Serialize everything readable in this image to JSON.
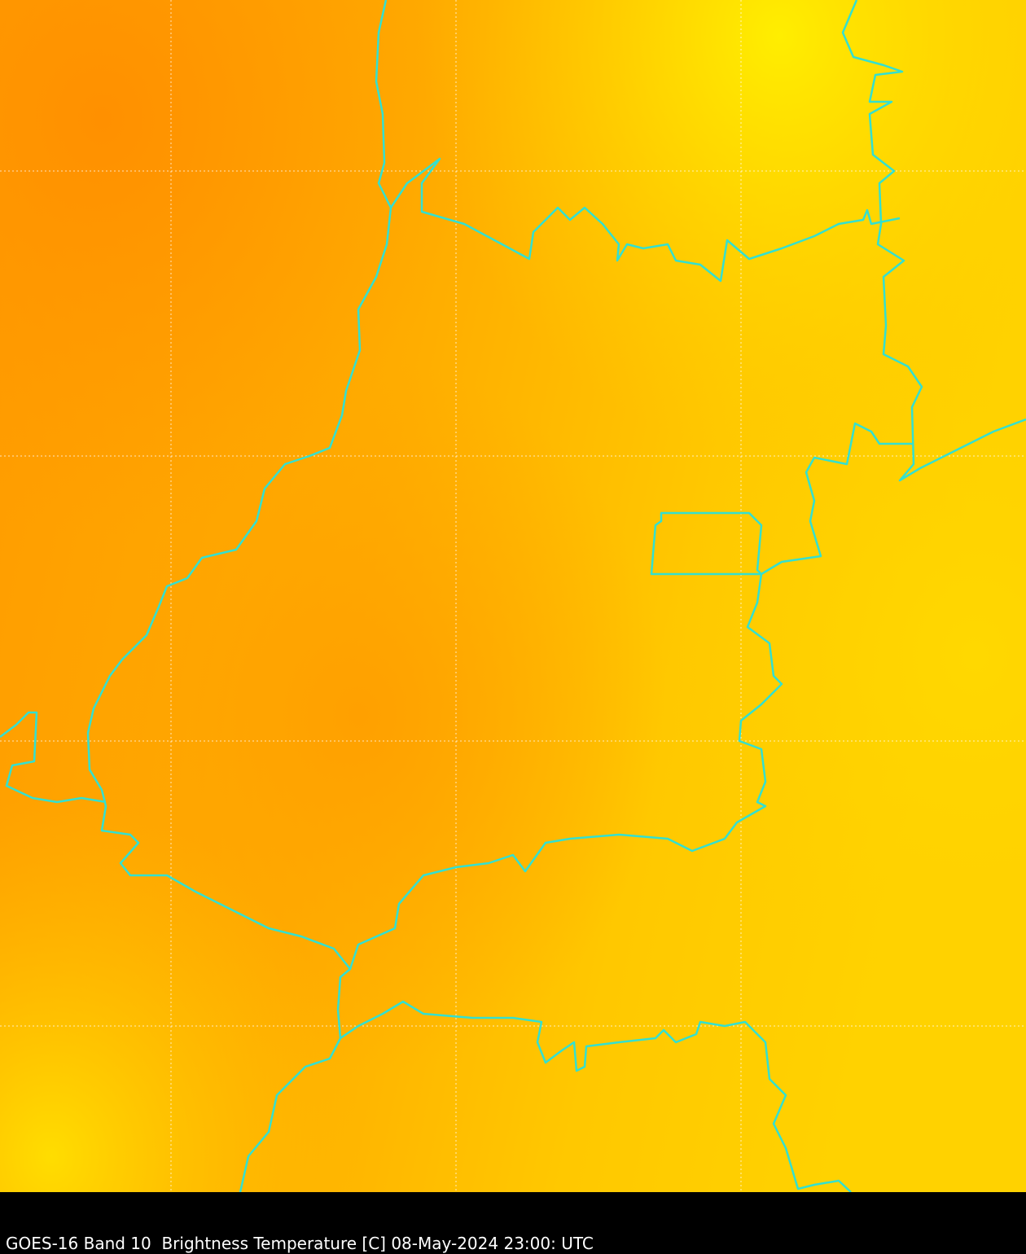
{
  "caption": "GOES-16 Band 10  Brightness Temperature [C] 08-May-2024 23:00: UTC",
  "colors": {
    "warm_dark": "#ff9500",
    "mid": "#ffaa00",
    "cool": "#ffcc00",
    "coolest": "#ffea00",
    "borders": "#33e0d0",
    "gridlines": "#ffffff",
    "caption_bar": "#000000"
  }
}
